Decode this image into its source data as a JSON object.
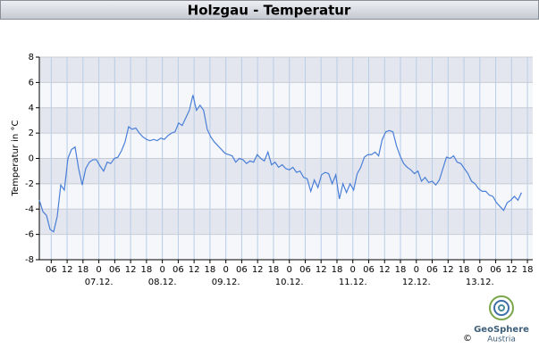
{
  "chart_data": {
    "type": "line",
    "title": "Holzgau - Temperatur",
    "ylabel": "Temperatur in °C",
    "color": "#4a7fd8",
    "grid": true,
    "ylim": [
      -8,
      8
    ],
    "yticks": [
      -8,
      -6,
      -4,
      -2,
      0,
      2,
      4,
      6,
      8
    ],
    "xlim": [
      1.5,
      188
    ],
    "xticks": [
      {
        "value": 6,
        "label": "06"
      },
      {
        "value": 12,
        "label": "12"
      },
      {
        "value": 18,
        "label": "18"
      },
      {
        "value": 24,
        "label": "0"
      },
      {
        "value": 30,
        "label": "06"
      },
      {
        "value": 36,
        "label": "12"
      },
      {
        "value": 42,
        "label": "18"
      },
      {
        "value": 48,
        "label": "0"
      },
      {
        "value": 54,
        "label": "06"
      },
      {
        "value": 60,
        "label": "12"
      },
      {
        "value": 66,
        "label": "18"
      },
      {
        "value": 72,
        "label": "0"
      },
      {
        "value": 78,
        "label": "06"
      },
      {
        "value": 84,
        "label": "12"
      },
      {
        "value": 90,
        "label": "18"
      },
      {
        "value": 96,
        "label": "0"
      },
      {
        "value": 102,
        "label": "06"
      },
      {
        "value": 108,
        "label": "12"
      },
      {
        "value": 114,
        "label": "18"
      },
      {
        "value": 120,
        "label": "0"
      },
      {
        "value": 126,
        "label": "06"
      },
      {
        "value": 132,
        "label": "12"
      },
      {
        "value": 138,
        "label": "18"
      },
      {
        "value": 144,
        "label": "0"
      },
      {
        "value": 150,
        "label": "06"
      },
      {
        "value": 156,
        "label": "12"
      },
      {
        "value": 162,
        "label": "18"
      },
      {
        "value": 168,
        "label": "0"
      },
      {
        "value": 174,
        "label": "06"
      },
      {
        "value": 180,
        "label": "12"
      },
      {
        "value": 186,
        "label": "18"
      }
    ],
    "xdates": [
      {
        "value": 24,
        "label": "07.12."
      },
      {
        "value": 48,
        "label": "08.12."
      },
      {
        "value": 72,
        "label": "09.12."
      },
      {
        "value": 96,
        "label": "10.12."
      },
      {
        "value": 120,
        "label": "11.12."
      },
      {
        "value": 144,
        "label": "12.12."
      },
      {
        "value": 168,
        "label": "13.12."
      }
    ],
    "x": [
      1.5,
      2.85,
      4.2,
      5.55,
      6.9,
      8.25,
      9.6,
      10.95,
      12.3,
      13.65,
      15,
      16.35,
      17.7,
      19.05,
      20.4,
      21.75,
      23.1,
      24.45,
      25.8,
      27.15,
      28.5,
      29.85,
      31.2,
      32.55,
      33.9,
      35.25,
      36.6,
      37.95,
      39.3,
      40.65,
      42,
      43.35,
      44.7,
      46.05,
      47.4,
      48.75,
      50.1,
      51.45,
      52.8,
      54.15,
      55.5,
      56.85,
      58.2,
      59.55,
      60.9,
      62.25,
      63.6,
      64.95,
      66.3,
      67.65,
      69,
      70.35,
      71.7,
      73.05,
      74.4,
      75.75,
      77.1,
      78.45,
      79.8,
      81.15,
      82.5,
      83.85,
      85.2,
      86.55,
      87.9,
      89.25,
      90.6,
      91.95,
      93.3,
      94.65,
      96,
      97.35,
      98.7,
      100.05,
      101.4,
      102.75,
      104.1,
      105.45,
      106.8,
      108.15,
      109.5,
      110.85,
      112.2,
      113.55,
      114.9,
      116.25,
      117.6,
      118.95,
      120.3,
      121.65,
      123,
      124.35,
      125.7,
      127.05,
      128.4,
      129.75,
      131.1,
      132.45,
      133.8,
      135.15,
      136.5,
      137.85,
      139.2,
      140.55,
      141.9,
      143.25,
      144.6,
      145.95,
      147.3,
      148.65,
      150,
      151.35,
      152.7,
      154.05,
      155.4,
      156.75,
      158.1,
      159.45,
      160.8,
      162.15,
      163.5,
      164.85,
      166.2,
      167.55,
      168.9,
      170.25,
      171.6,
      172.95,
      174.3,
      175.65,
      177,
      178.35,
      179.7,
      181.05,
      182.4,
      183.75
    ],
    "values": [
      -3.3,
      -4.2,
      -4.5,
      -5.6,
      -5.8,
      -4.6,
      -2.1,
      -2.5,
      0,
      0.7,
      0.9,
      -0.8,
      -2.1,
      -0.8,
      -0.3,
      -0.1,
      -0.1,
      -0.6,
      -1,
      -0.3,
      -0.4,
      0,
      0.1,
      0.6,
      1.3,
      2.5,
      2.3,
      2.4,
      2,
      1.7,
      1.5,
      1.4,
      1.5,
      1.4,
      1.6,
      1.5,
      1.8,
      2,
      2.1,
      2.8,
      2.6,
      3.2,
      3.8,
      5,
      3.8,
      4.2,
      3.8,
      2.3,
      1.7,
      1.3,
      1,
      0.7,
      0.4,
      0.3,
      0.2,
      -0.3,
      0,
      -0.1,
      -0.4,
      -0.2,
      -0.3,
      0.3,
      0,
      -0.2,
      0.5,
      -0.5,
      -0.3,
      -0.7,
      -0.5,
      -0.8,
      -0.9,
      -0.7,
      -1.1,
      -1,
      -1.5,
      -1.6,
      -2.6,
      -1.7,
      -2.3,
      -1.3,
      -1.1,
      -1.2,
      -2,
      -1.3,
      -3.2,
      -2,
      -2.7,
      -2,
      -2.5,
      -1.2,
      -0.7,
      0.1,
      0.3,
      0.3,
      0.5,
      0.2,
      1.5,
      2.1,
      2.2,
      2.1,
      1,
      0.2,
      -0.4,
      -0.7,
      -0.9,
      -1.2,
      -1,
      -1.8,
      -1.5,
      -1.9,
      -1.8,
      -2.1,
      -1.7,
      -0.8,
      0.1,
      0,
      0.2,
      -0.3,
      -0.4,
      -0.8,
      -1.2,
      -1.8,
      -2,
      -2.4,
      -2.6,
      -2.6,
      -2.9,
      -3,
      -3.5,
      -3.8,
      -4.1,
      -3.5,
      -3.3,
      -3,
      -3.3,
      -2.7
    ]
  },
  "logo": {
    "name": "GeoSphere",
    "subname": "Austria",
    "copyright": "©"
  }
}
